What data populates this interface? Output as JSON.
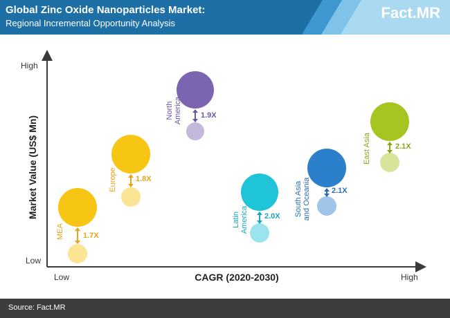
{
  "header": {
    "title": "Global Zinc Oxide Nanoparticles Market:",
    "subtitle": "Regional Incremental Opportunity Analysis",
    "logo_part1": "Fact",
    "logo_part2": ".MR"
  },
  "chart_data": {
    "type": "bubble",
    "xlabel": "CAGR (2020-2030)",
    "ylabel": "Market Value (US$ Mn)",
    "x_tick_labels": [
      "Low",
      "High"
    ],
    "y_tick_labels": [
      "Low",
      "High"
    ],
    "series": [
      {
        "name": "MEA",
        "multiplier": "1.7X",
        "color": "#f7c614",
        "label_color": "#e8a317"
      },
      {
        "name": "Europe",
        "multiplier": "1.8X",
        "color": "#f7c614",
        "label_color": "#e8a317"
      },
      {
        "name": "North America",
        "multiplier": "1.9X",
        "color": "#7b64b0",
        "label_color": "#6a56a3"
      },
      {
        "name": "Latin America",
        "multiplier": "2.0X",
        "color": "#20c4d8",
        "label_color": "#1aa6c0"
      },
      {
        "name": "South Asia and Oceania",
        "multiplier": "2.1X",
        "color": "#2b7fcb",
        "label_color": "#2a6db3"
      },
      {
        "name": "East Asia",
        "multiplier": "2.1X",
        "color": "#a7c520",
        "label_color": "#8aa51a"
      }
    ]
  },
  "footer": {
    "source": "Source: Fact.MR"
  }
}
